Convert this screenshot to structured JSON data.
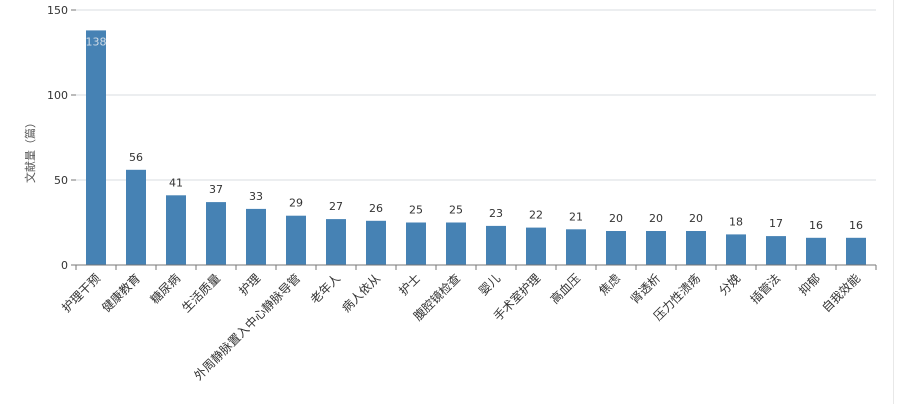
{
  "chart_data": {
    "type": "bar",
    "ylabel": "文献量（篇）",
    "ylim": [
      0,
      150
    ],
    "yticks": [
      0,
      50,
      100,
      150
    ],
    "grid": true,
    "bar_color": "#4682b4",
    "label_color": "#333333",
    "axis_color": "#777777",
    "grid_color": "#d8dce0",
    "categories": [
      "护理干预",
      "健康教育",
      "糖尿病",
      "生活质量",
      "护理",
      "外周静脉置入中心静脉导管",
      "老年人",
      "病人依从",
      "护士",
      "腹腔镜检查",
      "婴儿",
      "手术室护理",
      "高血压",
      "焦虑",
      "肾透析",
      "压力性溃疡",
      "分娩",
      "插管法",
      "抑郁",
      "自我效能"
    ],
    "values": [
      138,
      56,
      41,
      37,
      33,
      29,
      27,
      26,
      25,
      25,
      23,
      22,
      21,
      20,
      20,
      20,
      18,
      17,
      16,
      16
    ]
  }
}
